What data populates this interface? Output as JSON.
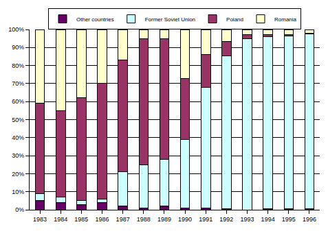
{
  "chart_data": {
    "type": "bar",
    "stacked": true,
    "grid": true,
    "legend": "top",
    "categories": [
      "1983",
      "1984",
      "1985",
      "1986",
      "1987",
      "1988",
      "1989",
      "1990",
      "1991",
      "1992",
      "1993",
      "1994",
      "1995",
      "1996"
    ],
    "series": [
      {
        "name": "Other countries",
        "color": "#660066",
        "values": [
          5,
          4,
          3,
          4,
          2,
          1,
          2,
          1,
          1,
          0.5,
          0,
          0.5,
          0.5,
          0.5
        ]
      },
      {
        "name": "Former Soviet Union",
        "color": "#ccffff",
        "values": [
          4,
          3,
          2,
          2,
          19,
          24,
          26,
          38,
          67,
          85,
          95,
          95.5,
          96,
          97
        ]
      },
      {
        "name": "Poland",
        "color": "#993366",
        "values": [
          50,
          48,
          57,
          64,
          62,
          70,
          67,
          34,
          18,
          8,
          2,
          1,
          0.5,
          0.5
        ]
      },
      {
        "name": "Romania",
        "color": "#ffffcc",
        "values": [
          41,
          45,
          38,
          30,
          17,
          5,
          5,
          27,
          14,
          6.5,
          3,
          3,
          3,
          2
        ]
      }
    ],
    "ylim": [
      0,
      100
    ],
    "yticks": [
      {
        "value": 0,
        "label": "0%"
      },
      {
        "value": 10,
        "label": "10%"
      },
      {
        "value": 20,
        "label": "20%"
      },
      {
        "value": 30,
        "label": "30%"
      },
      {
        "value": 40,
        "label": "40%"
      },
      {
        "value": 50,
        "label": "50%"
      },
      {
        "value": 60,
        "label": "60%"
      },
      {
        "value": 70,
        "label": "70%"
      },
      {
        "value": 80,
        "label": "80%"
      },
      {
        "value": 90,
        "label": "90%"
      },
      {
        "value": 100,
        "label": "100%"
      }
    ]
  }
}
